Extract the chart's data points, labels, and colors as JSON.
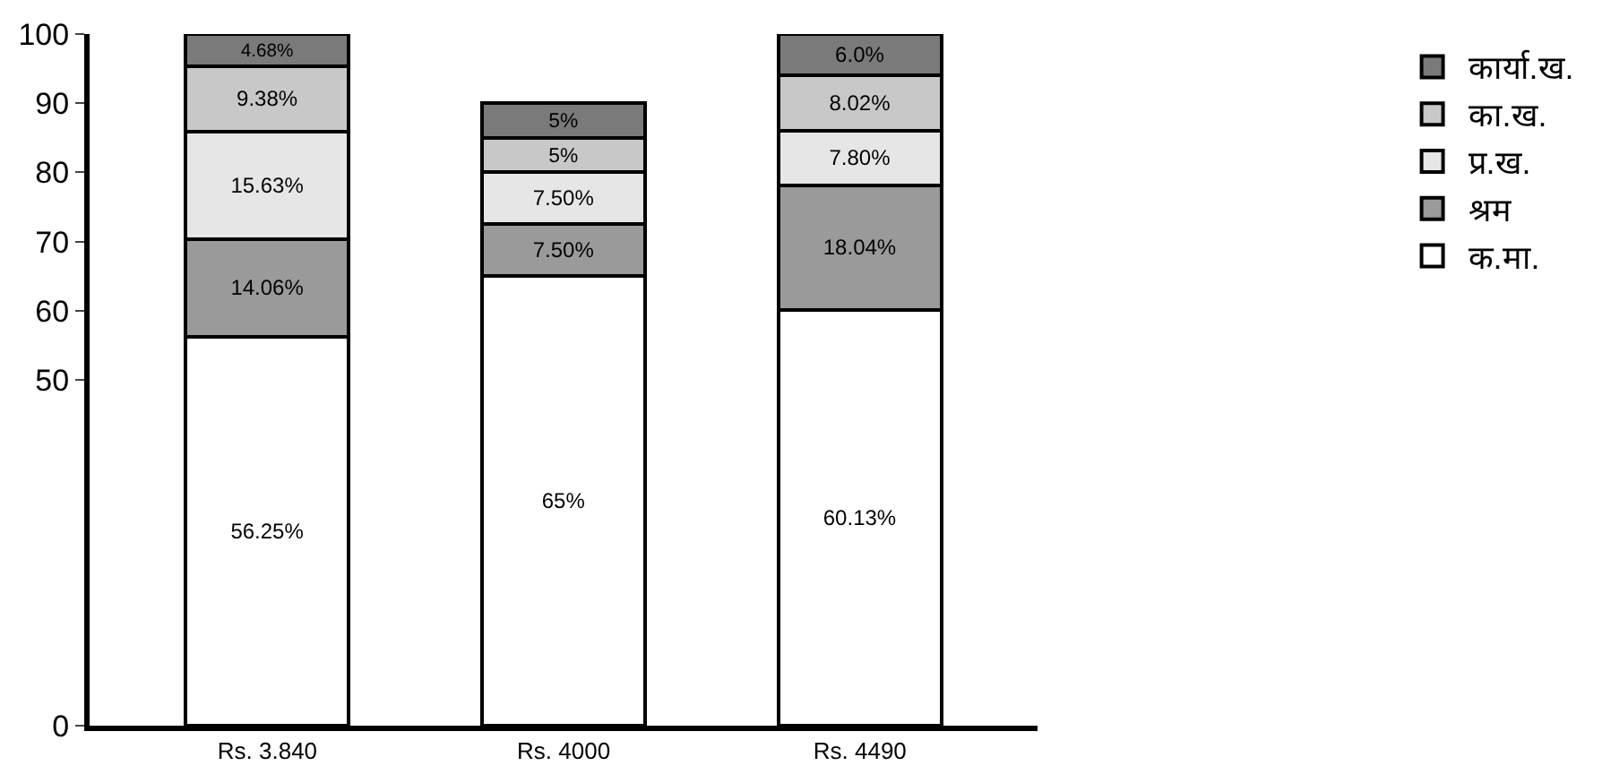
{
  "chart_data": {
    "type": "bar",
    "stacked": true,
    "categories": [
      "Rs. 3.840",
      "Rs. 4000",
      "Rs. 4490"
    ],
    "series": [
      {
        "name": "क.मा.",
        "color": "#ffffff",
        "values": [
          56.25,
          65,
          60.13
        ],
        "value_labels": [
          "56.25%",
          "65%",
          "60.13%"
        ]
      },
      {
        "name": "श्रम",
        "color": "#9a9a9a",
        "values": [
          14.06,
          7.5,
          18.04
        ],
        "value_labels": [
          "14.06%",
          "7.50%",
          "18.04%"
        ]
      },
      {
        "name": "प्र.ख.",
        "color": "#e6e6e6",
        "values": [
          15.63,
          7.5,
          7.8
        ],
        "value_labels": [
          "15.63%",
          "7.50%",
          "7.80%"
        ]
      },
      {
        "name": "का.ख.",
        "color": "#c8c8c8",
        "values": [
          9.38,
          5,
          8.02
        ],
        "value_labels": [
          "9.38%",
          "5%",
          "8.02%"
        ]
      },
      {
        "name": "कार्या.ख.",
        "color": "#7a7a7a",
        "values": [
          4.68,
          5,
          6.0
        ],
        "value_labels": [
          "4.68%",
          "5%",
          "6.0%"
        ]
      }
    ],
    "ylim": [
      0,
      100
    ],
    "yticks": [
      0,
      50,
      60,
      70,
      80,
      90,
      100
    ],
    "legend": "right"
  }
}
